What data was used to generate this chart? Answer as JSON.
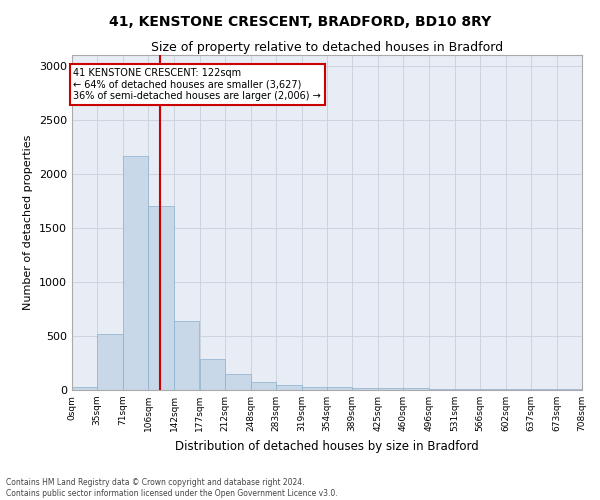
{
  "title": "41, KENSTONE CRESCENT, BRADFORD, BD10 8RY",
  "subtitle": "Size of property relative to detached houses in Bradford",
  "xlabel": "Distribution of detached houses by size in Bradford",
  "ylabel": "Number of detached properties",
  "bins": [
    "0sqm",
    "35sqm",
    "71sqm",
    "106sqm",
    "142sqm",
    "177sqm",
    "212sqm",
    "248sqm",
    "283sqm",
    "319sqm",
    "354sqm",
    "389sqm",
    "425sqm",
    "460sqm",
    "496sqm",
    "531sqm",
    "566sqm",
    "602sqm",
    "637sqm",
    "673sqm",
    "708sqm"
  ],
  "bar_heights": [
    25,
    520,
    2170,
    1700,
    635,
    285,
    150,
    75,
    45,
    30,
    25,
    20,
    18,
    15,
    12,
    10,
    8,
    7,
    6,
    5
  ],
  "bar_color": "#c8d8e8",
  "bar_edge_color": "#8ab0cc",
  "property_line_x": 122,
  "property_line_color": "#cc0000",
  "annotation_title": "41 KENSTONE CRESCENT: 122sqm",
  "annotation_line1": "← 64% of detached houses are smaller (3,627)",
  "annotation_line2": "36% of semi-detached houses are larger (2,006) →",
  "annotation_box_color": "#ffffff",
  "annotation_box_edge_color": "#cc0000",
  "ylim": [
    0,
    3100
  ],
  "yticks": [
    0,
    500,
    1000,
    1500,
    2000,
    2500,
    3000
  ],
  "grid_color": "#c8d0dc",
  "bg_color": "#e8ecf4",
  "footer_line1": "Contains HM Land Registry data © Crown copyright and database right 2024.",
  "footer_line2": "Contains public sector information licensed under the Open Government Licence v3.0.",
  "bin_edges": [
    0,
    35,
    71,
    106,
    142,
    177,
    212,
    248,
    283,
    319,
    354,
    389,
    425,
    460,
    496,
    531,
    566,
    602,
    637,
    673,
    708
  ]
}
